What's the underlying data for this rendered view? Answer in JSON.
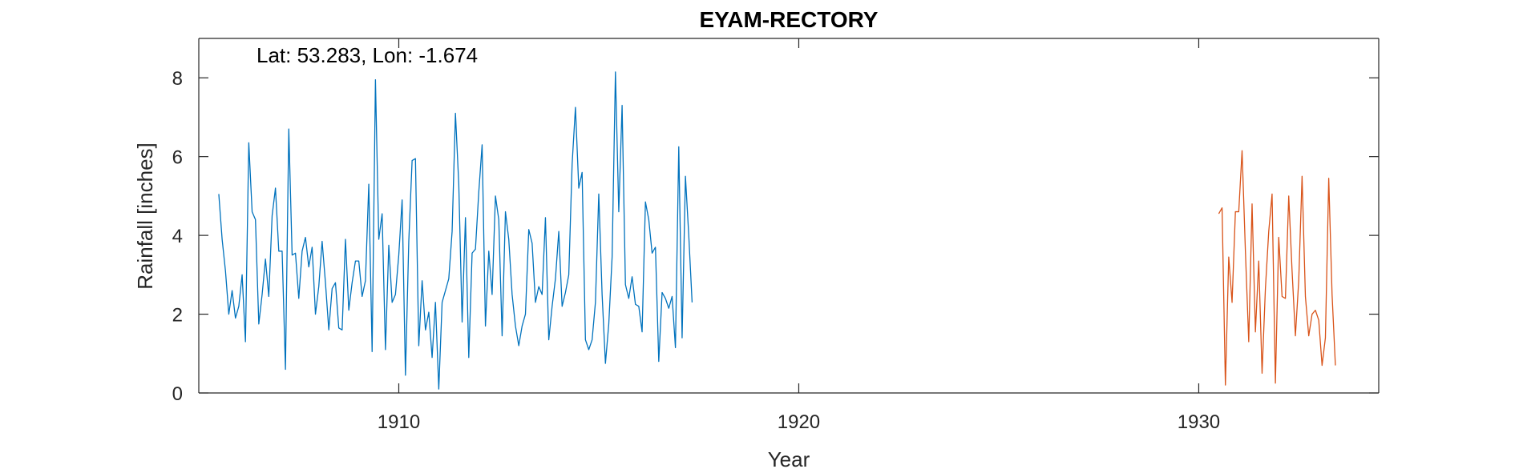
{
  "chart_data": {
    "type": "line",
    "title": "EYAM-RECTORY",
    "annotation": "Lat: 53.283, Lon: -1.674",
    "xlabel": "Year",
    "ylabel": "Rainfall [inches]",
    "xlim": [
      1905.0,
      1934.5
    ],
    "ylim": [
      0,
      9
    ],
    "xticks": [
      1910,
      1920,
      1930
    ],
    "xtick_labels": [
      "1910",
      "1920",
      "1930"
    ],
    "yticks": [
      0,
      2,
      4,
      6,
      8
    ],
    "ytick_labels": [
      "0",
      "2",
      "4",
      "6",
      "8"
    ],
    "grid": false,
    "series": [
      {
        "color": "#0072BD",
        "x_start": 1905.5,
        "x_step": 0.0833333,
        "values": [
          5.05,
          3.9,
          3.1,
          2.0,
          2.6,
          1.9,
          2.2,
          3.0,
          1.3,
          6.35,
          4.6,
          4.4,
          1.75,
          2.5,
          3.4,
          2.45,
          4.5,
          5.2,
          3.6,
          3.6,
          0.6,
          6.7,
          3.5,
          3.55,
          2.4,
          3.6,
          3.95,
          3.2,
          3.7,
          2.0,
          2.7,
          3.85,
          2.8,
          1.6,
          2.65,
          2.8,
          1.65,
          1.6,
          3.9,
          2.1,
          2.8,
          3.35,
          3.35,
          2.45,
          2.85,
          5.3,
          1.05,
          7.95,
          3.9,
          4.55,
          1.1,
          3.75,
          2.3,
          2.5,
          3.5,
          4.9,
          0.45,
          3.85,
          5.9,
          5.95,
          1.2,
          2.85,
          1.6,
          2.05,
          0.9,
          2.3,
          0.1,
          2.3,
          2.6,
          2.9,
          4.1,
          7.1,
          5.3,
          1.8,
          4.45,
          0.9,
          3.55,
          3.65,
          5.1,
          6.3,
          1.7,
          3.6,
          2.5,
          5.0,
          4.4,
          1.45,
          4.6,
          3.9,
          2.5,
          1.7,
          1.2,
          1.7,
          2.0,
          4.15,
          3.8,
          2.3,
          2.7,
          2.5,
          4.45,
          1.35,
          2.2,
          2.9,
          4.1,
          2.2,
          2.55,
          3.0,
          5.8,
          7.25,
          5.2,
          5.6,
          1.35,
          1.1,
          1.35,
          2.3,
          5.05,
          2.5,
          0.75,
          1.75,
          3.45,
          8.15,
          4.6,
          7.3,
          2.75,
          2.4,
          2.95,
          2.25,
          2.2,
          1.55,
          4.85,
          4.4,
          3.55,
          3.7,
          0.8,
          2.55,
          2.4,
          2.15,
          2.45,
          1.15,
          6.25,
          1.4,
          5.5,
          4.0,
          2.3
        ]
      },
      {
        "color": "#D95319",
        "x_start": 1930.5,
        "x_step": 0.0833333,
        "values": [
          4.55,
          4.7,
          0.2,
          3.45,
          2.3,
          4.6,
          4.6,
          6.15,
          3.6,
          1.3,
          4.8,
          1.55,
          3.35,
          0.5,
          2.65,
          4.1,
          5.05,
          0.25,
          3.95,
          2.45,
          2.4,
          5.0,
          3.1,
          1.45,
          2.85,
          5.5,
          2.45,
          1.45,
          2.0,
          2.1,
          1.85,
          0.7,
          1.4,
          5.45,
          2.5,
          0.7
        ]
      }
    ]
  }
}
